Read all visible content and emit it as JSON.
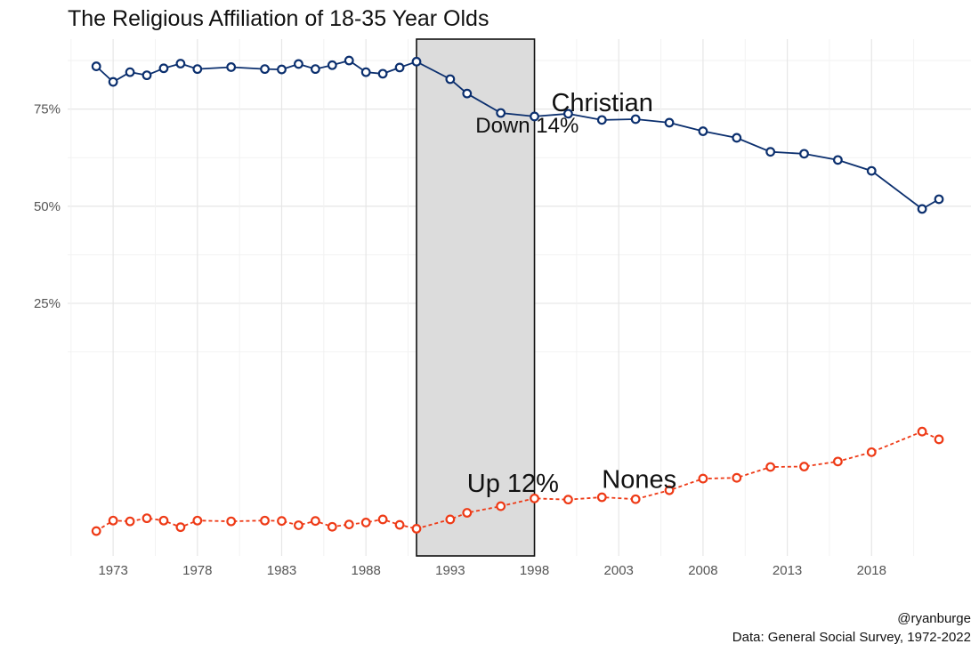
{
  "chart_data": {
    "type": "line",
    "title": "The Religious Affiliation of 18-35 Year Olds",
    "xlabel": "",
    "ylabel": "",
    "xlim": [
      1970.3,
      2023.9
    ],
    "ylim": [
      -0.4,
      0.93
    ],
    "x_ticks": [
      1973,
      1978,
      1983,
      1988,
      1993,
      1998,
      2003,
      2008,
      2013,
      2018
    ],
    "y_ticks": [
      0.25,
      0.5,
      0.75
    ],
    "y_tick_labels": [
      "25%",
      "50%",
      "75%"
    ],
    "grid": true,
    "shaded_region": {
      "x_start": 1991,
      "x_end": 1998
    },
    "series": [
      {
        "name": "Christian",
        "color": "#0b2f6e",
        "line_style": "solid",
        "x": [
          1972,
          1973,
          1974,
          1975,
          1976,
          1977,
          1978,
          1980,
          1982,
          1983,
          1984,
          1985,
          1986,
          1987,
          1988,
          1989,
          1990,
          1991,
          1993,
          1994,
          1996,
          1998,
          2000,
          2002,
          2004,
          2006,
          2008,
          2010,
          2012,
          2014,
          2016,
          2018,
          2021,
          2022
        ],
        "values": [
          0.86,
          0.82,
          0.845,
          0.837,
          0.855,
          0.867,
          0.853,
          0.858,
          0.853,
          0.852,
          0.866,
          0.853,
          0.863,
          0.875,
          0.845,
          0.841,
          0.857,
          0.872,
          0.827,
          0.79,
          0.74,
          0.731,
          0.738,
          0.722,
          0.724,
          0.715,
          0.693,
          0.676,
          0.64,
          0.635,
          0.619,
          0.591,
          0.493,
          0.518
        ]
      },
      {
        "name": "Nones",
        "color": "#ee3a16",
        "line_style": "dashed",
        "x": [
          1972,
          1973,
          1974,
          1975,
          1976,
          1977,
          1978,
          1980,
          1982,
          1983,
          1984,
          1985,
          1986,
          1987,
          1988,
          1989,
          1990,
          1991,
          1993,
          1994,
          1996,
          1998,
          2000,
          2002,
          2004,
          2006,
          2008,
          2010,
          2012,
          2014,
          2016,
          2018,
          2021,
          2022
        ],
        "values": [
          -0.336,
          -0.309,
          -0.311,
          -0.303,
          -0.309,
          -0.326,
          -0.309,
          -0.311,
          -0.309,
          -0.31,
          -0.321,
          -0.31,
          -0.325,
          -0.319,
          -0.314,
          -0.306,
          -0.32,
          -0.33,
          -0.306,
          -0.289,
          -0.272,
          -0.252,
          -0.255,
          -0.249,
          -0.254,
          -0.231,
          -0.201,
          -0.199,
          -0.171,
          -0.17,
          -0.157,
          -0.133,
          -0.08,
          -0.1
        ]
      }
    ],
    "annotations": [
      {
        "text": "Christian",
        "x": 1999.0,
        "y": 0.745
      },
      {
        "text": "Down 14%",
        "x": 1994.5,
        "y": 0.69
      },
      {
        "text": "Nones",
        "x": 2002.0,
        "y": -0.225
      },
      {
        "text": "Up 12%",
        "x": 1994.0,
        "y": -0.235
      }
    ]
  },
  "caption": {
    "author": "@ryanburge",
    "source": "Data: General Social Survey, 1972-2022"
  }
}
